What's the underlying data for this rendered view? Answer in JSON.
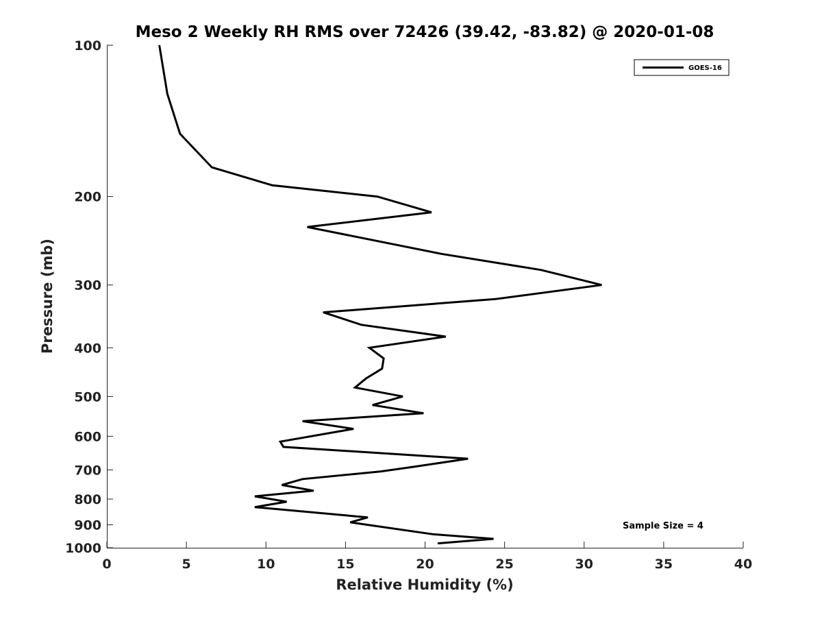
{
  "chart_data": {
    "type": "line",
    "title": "Meso 2 Weekly RH RMS over 72426 (39.42, -83.82) @ 2020-01-08",
    "xlabel": "Relative Humidity (%)",
    "ylabel": "Pressure (mb)",
    "xlim": [
      0,
      40
    ],
    "ylim": [
      100,
      1000
    ],
    "yscale": "log",
    "y_reversed": true,
    "grid": false,
    "legend_position": "top-right",
    "xticks": [
      "0",
      "5",
      "10",
      "15",
      "20",
      "25",
      "30",
      "35",
      "40"
    ],
    "yticks": [
      "100",
      "200",
      "300",
      "400",
      "500",
      "600",
      "700",
      "800",
      "900",
      "1000"
    ],
    "annotation": "Sample Size = 4",
    "series": [
      {
        "name": "GOES-16",
        "color": "#000000",
        "x": [
          3.3,
          3.8,
          4.6,
          6.6,
          10.4,
          17.0,
          20.4,
          12.6,
          21.0,
          27.3,
          31.1,
          24.4,
          13.6,
          16.0,
          21.3,
          16.5,
          17.4,
          17.3,
          16.3,
          15.6,
          18.6,
          16.7,
          19.9,
          12.3,
          15.5,
          10.9,
          11.1,
          22.7,
          19.3,
          17.2,
          12.3,
          11.0,
          13.0,
          9.3,
          11.3,
          9.3,
          16.4,
          15.3,
          20.5,
          24.3,
          20.8
        ],
        "y": [
          100,
          125,
          150,
          175,
          190,
          200,
          215,
          230,
          260,
          280,
          300,
          320,
          340,
          360,
          380,
          400,
          420,
          440,
          460,
          480,
          500,
          520,
          540,
          560,
          580,
          615,
          630,
          665,
          690,
          705,
          730,
          750,
          770,
          790,
          810,
          830,
          870,
          890,
          940,
          960,
          980
        ]
      }
    ]
  }
}
